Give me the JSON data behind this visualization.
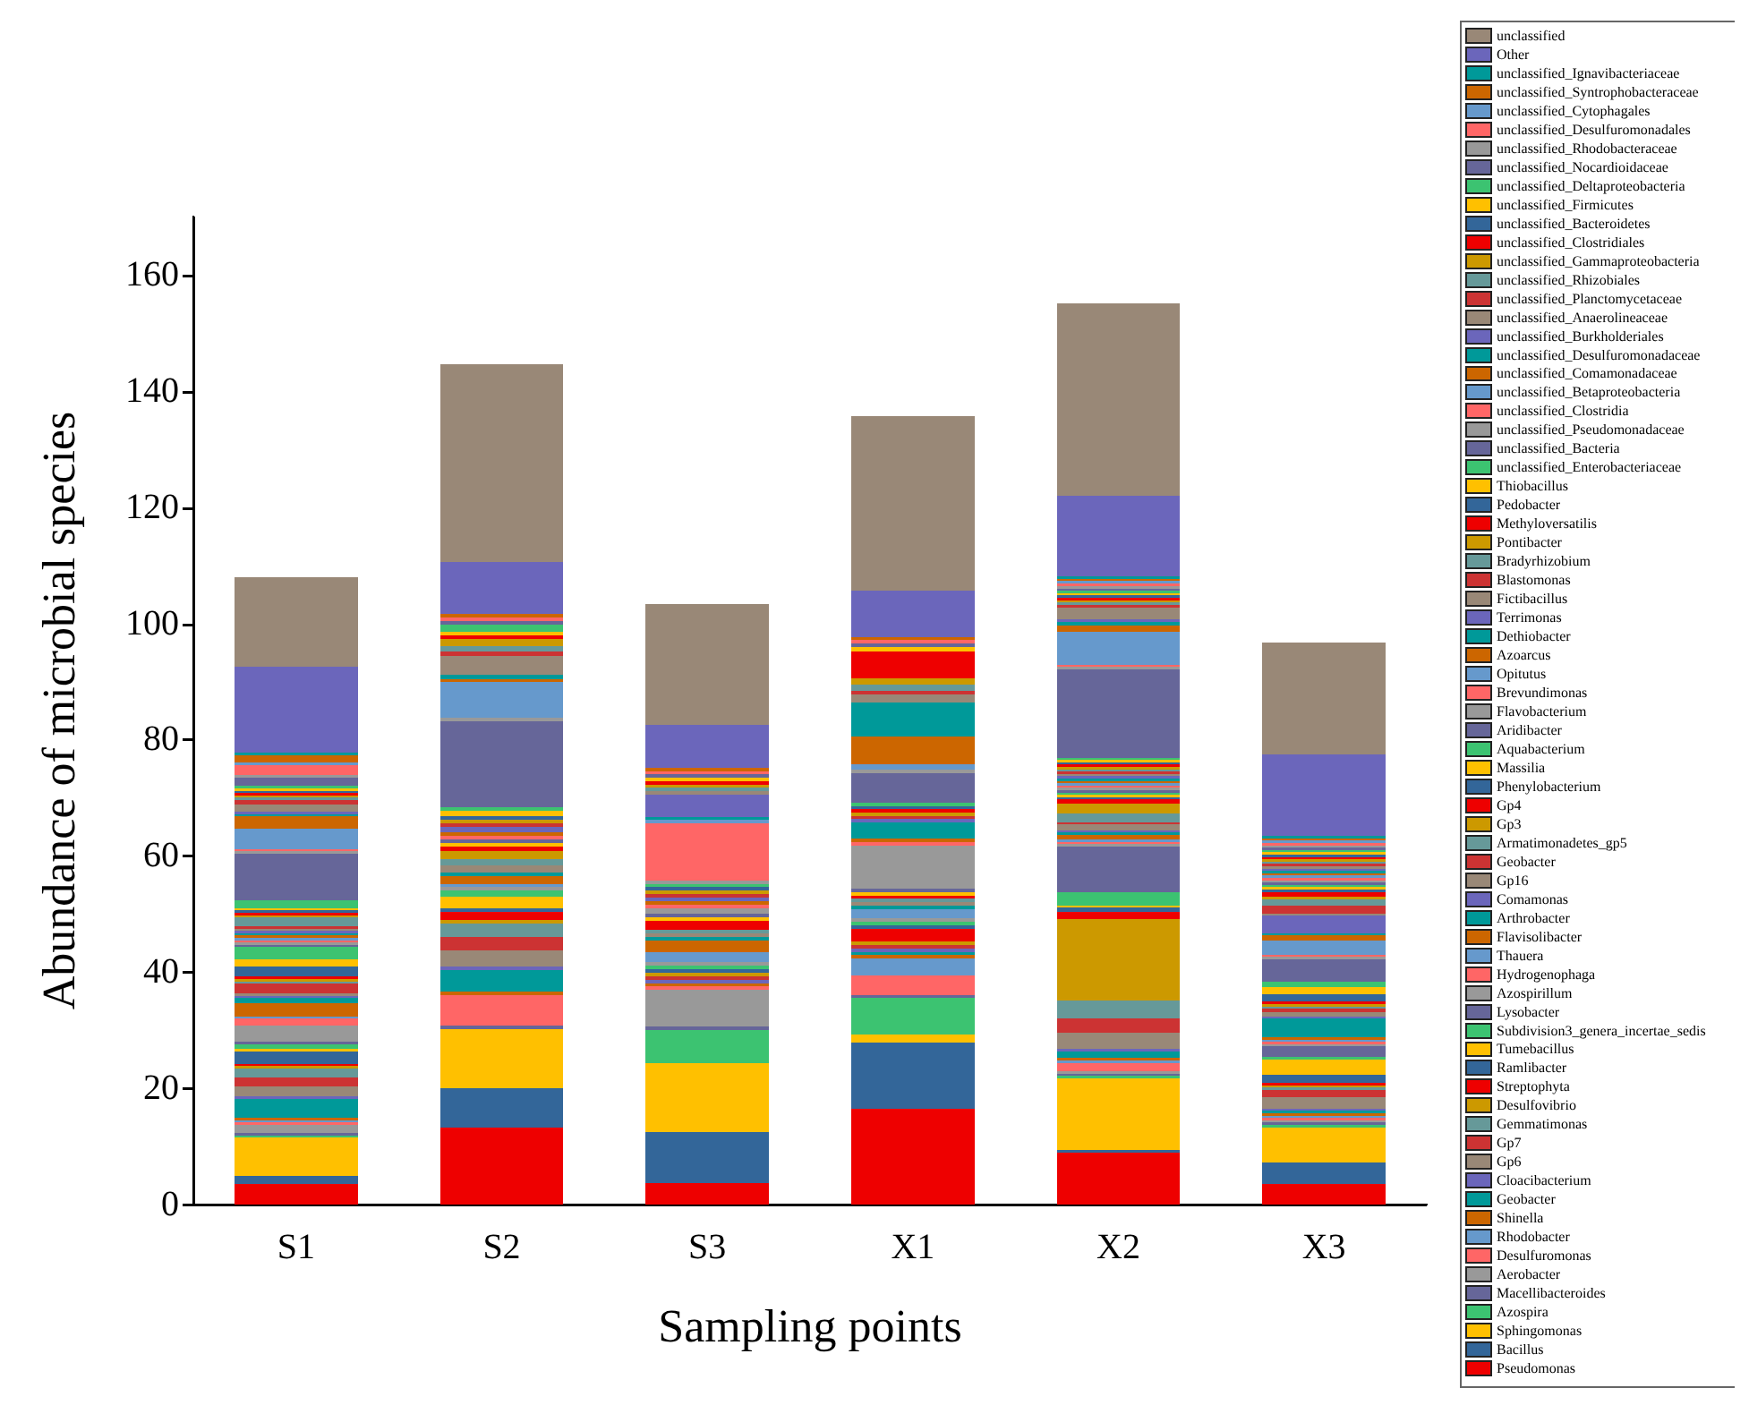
{
  "chart_data": {
    "type": "bar",
    "stacked": true,
    "xlabel": "Sampling points",
    "ylabel": "Abundance of microbial species",
    "categories": [
      "S1",
      "S2",
      "S3",
      "X1",
      "X2",
      "X3"
    ],
    "ylim": [
      0,
      170
    ],
    "yticks": [
      0,
      20,
      40,
      60,
      80,
      100,
      120,
      140,
      160
    ],
    "grid": false,
    "legend": "right",
    "series": [
      {
        "name": "Pseudomonas",
        "color": "#ee0000",
        "values": [
          3.5,
          13.2,
          3.7,
          16.5,
          9.0,
          3.5
        ]
      },
      {
        "name": "Bacillus",
        "color": "#336699",
        "values": [
          1.5,
          6.8,
          8.8,
          11.3,
          0.4,
          3.7
        ]
      },
      {
        "name": "Sphingomonas",
        "color": "#ffc000",
        "values": [
          6.5,
          10.2,
          11.8,
          1.4,
          12.3,
          6.1
        ]
      },
      {
        "name": "Azospira",
        "color": "#3cc371",
        "values": [
          0.4,
          null,
          5.7,
          6.3,
          0.4,
          0.4
        ]
      },
      {
        "name": "Macellibacteroides",
        "color": "#666699",
        "values": [
          0.4,
          0.6,
          0.6,
          0.6,
          0.4,
          0.4
        ]
      },
      {
        "name": "Aerobacter",
        "color": "#999999",
        "values": [
          1.4,
          null,
          6.3,
          null,
          0.4,
          0.4
        ]
      },
      {
        "name": "Desulfuromonas",
        "color": "#ff6666",
        "values": [
          0.4,
          5.2,
          0.6,
          3.3,
          1.5,
          0.4
        ]
      },
      {
        "name": "Rhodobacter",
        "color": "#6699cc",
        "values": [
          0.4,
          null,
          null,
          3.0,
          0.4,
          0.4
        ]
      },
      {
        "name": "Shinella",
        "color": "#cc6600",
        "values": [
          0.4,
          0.6,
          0.6,
          0.6,
          0.4,
          0.4
        ]
      },
      {
        "name": "Geobacter",
        "color": "#009999",
        "values": [
          3.3,
          3.8,
          null,
          0.5,
          1.2,
          0.4
        ]
      },
      {
        "name": "Cloacibacterium",
        "color": "#6b66bb",
        "values": [
          0.4,
          0.6,
          0.6,
          0.6,
          0.4,
          0.4
        ]
      },
      {
        "name": "Gp6",
        "color": "#998877",
        "values": [
          1.8,
          2.7,
          null,
          null,
          2.8,
          2.0
        ]
      },
      {
        "name": "Gp7",
        "color": "#cc3333",
        "values": [
          1.5,
          2.3,
          0.6,
          0.6,
          2.5,
          1.2
        ]
      },
      {
        "name": "Gemmatimonas",
        "color": "#669999",
        "values": [
          1.5,
          2.3,
          null,
          null,
          3.0,
          0.4
        ]
      },
      {
        "name": "Desulfovibrio",
        "color": "#cc9900",
        "values": [
          0.4,
          0.6,
          0.6,
          0.6,
          14.0,
          0.4
        ]
      },
      {
        "name": "Streptophyta",
        "color": "#ee0000",
        "values": [
          0.4,
          1.5,
          null,
          2.2,
          1.2,
          0.4
        ]
      },
      {
        "name": "Ramlibacter",
        "color": "#336699",
        "values": [
          2.2,
          0.6,
          0.6,
          0.6,
          0.8,
          1.4
        ]
      },
      {
        "name": "Tumebacillus",
        "color": "#ffc000",
        "values": [
          0.4,
          2.0,
          null,
          null,
          0.4,
          2.7
        ]
      },
      {
        "name": "Subdivision3_genera_incertae_sedis",
        "color": "#3cc371",
        "values": [
          0.8,
          1.0,
          0.6,
          0.6,
          2.2,
          0.4
        ]
      },
      {
        "name": "Lysobacter",
        "color": "#666699",
        "values": [
          0.4,
          null,
          null,
          null,
          7.9,
          1.8
        ]
      },
      {
        "name": "Azospirillum",
        "color": "#999999",
        "values": [
          2.8,
          0.6,
          0.6,
          0.6,
          0.4,
          0.4
        ]
      },
      {
        "name": "Hydrogenophaga",
        "color": "#ff6666",
        "values": [
          1.2,
          null,
          null,
          null,
          0.4,
          0.4
        ]
      },
      {
        "name": "Thauera",
        "color": "#6699cc",
        "values": [
          0.4,
          0.6,
          1.8,
          1.5,
          0.4,
          0.4
        ]
      },
      {
        "name": "Flavisolibacter",
        "color": "#cc6600",
        "values": [
          2.3,
          1.3,
          2.0,
          null,
          0.8,
          0.4
        ]
      },
      {
        "name": "Arthrobacter",
        "color": "#009999",
        "values": [
          0.8,
          0.6,
          0.6,
          0.6,
          0.4,
          3.2
        ]
      },
      {
        "name": "Comamonas",
        "color": "#6b66bb",
        "values": [
          0.4,
          null,
          null,
          null,
          0.4,
          0.4
        ]
      },
      {
        "name": "Gp16",
        "color": "#998877",
        "values": [
          0.4,
          1.2,
          0.6,
          0.6,
          1.0,
          0.7
        ]
      },
      {
        "name": "Geobacter",
        "color": "#cc3333",
        "values": [
          1.7,
          null,
          null,
          null,
          0.4,
          0.6
        ]
      },
      {
        "name": "Armatimonadetes_gp5",
        "color": "#669999",
        "values": [
          0.4,
          1.2,
          0.6,
          0.6,
          1.5,
          0.4
        ]
      },
      {
        "name": "Gp3",
        "color": "#cc9900",
        "values": [
          0.4,
          1.3,
          null,
          null,
          1.7,
          0.4
        ]
      },
      {
        "name": "Gp4",
        "color": "#ee0000",
        "values": [
          0.4,
          0.8,
          1.5,
          0.6,
          0.7,
          0.4
        ]
      },
      {
        "name": "Phenylobacterium",
        "color": "#336699",
        "values": [
          1.8,
          null,
          null,
          null,
          0.4,
          1.3
        ]
      },
      {
        "name": "Massilia",
        "color": "#ffc000",
        "values": [
          1.2,
          0.6,
          0.6,
          0.6,
          0.4,
          1.2
        ]
      },
      {
        "name": "Aquabacterium",
        "color": "#3cc371",
        "values": [
          2.1,
          null,
          null,
          null,
          0.4,
          1.0
        ]
      },
      {
        "name": "Aridibacter",
        "color": "#666699",
        "values": [
          0.4,
          0.6,
          0.6,
          0.6,
          0.4,
          3.8
        ]
      },
      {
        "name": "Flavobacterium",
        "color": "#999999",
        "values": [
          0.4,
          null,
          1.0,
          7.4,
          0.4,
          0.4
        ]
      },
      {
        "name": "Brevundimonas",
        "color": "#ff6666",
        "values": [
          0.4,
          0.6,
          0.6,
          0.6,
          0.4,
          0.4
        ]
      },
      {
        "name": "Opitutus",
        "color": "#6699cc",
        "values": [
          0.4,
          null,
          null,
          null,
          0.4,
          2.5
        ]
      },
      {
        "name": "Azoarcus",
        "color": "#cc6600",
        "values": [
          0.4,
          0.6,
          0.6,
          0.6,
          0.4,
          0.8
        ]
      },
      {
        "name": "Dethiobacter",
        "color": "#009999",
        "values": [
          0.4,
          null,
          null,
          2.7,
          0.4,
          0.4
        ]
      },
      {
        "name": "Terrimonas",
        "color": "#6b66bb",
        "values": [
          0.4,
          1.0,
          0.6,
          0.6,
          0.4,
          3.0
        ]
      },
      {
        "name": "Fictibacillus",
        "color": "#998877",
        "values": [
          0.4,
          null,
          null,
          null,
          0.4,
          0.4
        ]
      },
      {
        "name": "Blastomonas",
        "color": "#cc3333",
        "values": [
          0.4,
          0.6,
          0.6,
          0.6,
          0.4,
          1.4
        ]
      },
      {
        "name": "Bradyrhizobium",
        "color": "#669999",
        "values": [
          1.5,
          null,
          null,
          null,
          0.4,
          1.0
        ]
      },
      {
        "name": "Pontibacter",
        "color": "#cc9900",
        "values": [
          0.4,
          0.6,
          0.6,
          0.6,
          0.4,
          0.5
        ]
      },
      {
        "name": "Methyloversatilis",
        "color": "#ee0000",
        "values": [
          0.4,
          null,
          null,
          0.5,
          0.4,
          0.8
        ]
      },
      {
        "name": "Pedobacter",
        "color": "#336699",
        "values": [
          0.4,
          0.6,
          0.6,
          0.6,
          0.4,
          0.4
        ]
      },
      {
        "name": "Thiobacillus",
        "color": "#ffc000",
        "values": [
          0.4,
          1.0,
          null,
          null,
          0.4,
          0.4
        ]
      },
      {
        "name": "unclassified_Enterobacteriaceae",
        "color": "#3cc371",
        "values": [
          1.4,
          0.6,
          0.6,
          0.6,
          0.4,
          0.4
        ]
      },
      {
        "name": "unclassified_Bacteria",
        "color": "#666699",
        "values": [
          8.0,
          14.7,
          null,
          5.0,
          15.2,
          0.4
        ]
      },
      {
        "name": "unclassified_Pseudomonadaceae",
        "color": "#999999",
        "values": [
          0.4,
          0.6,
          0.6,
          0.6,
          0.4,
          0.4
        ]
      },
      {
        "name": "unclassified_Clostridia",
        "color": "#ff6666",
        "values": [
          0.4,
          null,
          9.8,
          null,
          0.4,
          0.4
        ]
      },
      {
        "name": "unclassified_Betaproteobacteria",
        "color": "#6699cc",
        "values": [
          3.4,
          6.2,
          0.6,
          1.0,
          5.7,
          0.4
        ]
      },
      {
        "name": "unclassified_Comamonadaceae",
        "color": "#cc6600",
        "values": [
          2.2,
          0.5,
          null,
          4.8,
          1.0,
          0.4
        ]
      },
      {
        "name": "unclassified_Desulfuromonadaceae",
        "color": "#009999",
        "values": [
          0.4,
          0.8,
          0.5,
          5.8,
          0.7,
          0.4
        ]
      },
      {
        "name": "unclassified_Burkholderiales",
        "color": "#6b66bb",
        "values": [
          0.4,
          null,
          3.8,
          null,
          0.4,
          0.4
        ]
      },
      {
        "name": "unclassified_Anaerolineaceae",
        "color": "#998877",
        "values": [
          1.3,
          3.2,
          0.6,
          1.3,
          2.0,
          0.4
        ]
      },
      {
        "name": "unclassified_Planctomycetaceae",
        "color": "#cc3333",
        "values": [
          0.7,
          0.7,
          null,
          0.7,
          0.5,
          0.4
        ]
      },
      {
        "name": "unclassified_Rhizobiales",
        "color": "#669999",
        "values": [
          0.4,
          1.0,
          0.6,
          1.0,
          0.4,
          0.4
        ]
      },
      {
        "name": "unclassified_Gammaproteobacteria",
        "color": "#cc9900",
        "values": [
          0.4,
          1.2,
          0.5,
          1.2,
          0.4,
          0.4
        ]
      },
      {
        "name": "unclassified_Clostridiales",
        "color": "#ee0000",
        "values": [
          0.4,
          0.6,
          0.6,
          4.5,
          0.4,
          0.4
        ]
      },
      {
        "name": "unclassified_Bacteroidetes",
        "color": "#336699",
        "values": [
          0.4,
          null,
          null,
          null,
          0.4,
          0.4
        ]
      },
      {
        "name": "unclassified_Firmicutes",
        "color": "#ffc000",
        "values": [
          0.4,
          0.6,
          0.6,
          0.8,
          0.4,
          0.4
        ]
      },
      {
        "name": "unclassified_Deltaproteobacteria",
        "color": "#3cc371",
        "values": [
          0.4,
          1.3,
          null,
          null,
          0.4,
          0.4
        ]
      },
      {
        "name": "unclassified_Nocardioidaceae",
        "color": "#666699",
        "values": [
          1.5,
          0.6,
          0.6,
          0.6,
          0.4,
          0.4
        ]
      },
      {
        "name": "unclassified_Rhodobacteraceae",
        "color": "#999999",
        "values": [
          0.4,
          null,
          null,
          null,
          0.4,
          0.4
        ]
      },
      {
        "name": "unclassified_Desulfuromonadales",
        "color": "#ff6666",
        "values": [
          1.7,
          0.6,
          0.6,
          0.6,
          0.4,
          0.4
        ]
      },
      {
        "name": "unclassified_Cytophagales",
        "color": "#6699cc",
        "values": [
          0.4,
          null,
          null,
          null,
          0.5,
          0.4
        ]
      },
      {
        "name": "unclassified_Syntrophobacteraceae",
        "color": "#cc6600",
        "values": [
          1.3,
          0.6,
          0.6,
          0.6,
          0.4,
          0.4
        ]
      },
      {
        "name": "unclassified_Ignavibacteriaceae",
        "color": "#009999",
        "values": [
          0.4,
          null,
          null,
          null,
          0.4,
          0.4
        ]
      },
      {
        "name": "Other",
        "color": "#6b66bb",
        "values": [
          14.9,
          8.9,
          7.3,
          8.0,
          13.8,
          14.0
        ]
      },
      {
        "name": "unclassified",
        "color": "#998877",
        "values": [
          15.3,
          34.1,
          20.8,
          30.0,
          33.2,
          19.3
        ]
      }
    ]
  }
}
